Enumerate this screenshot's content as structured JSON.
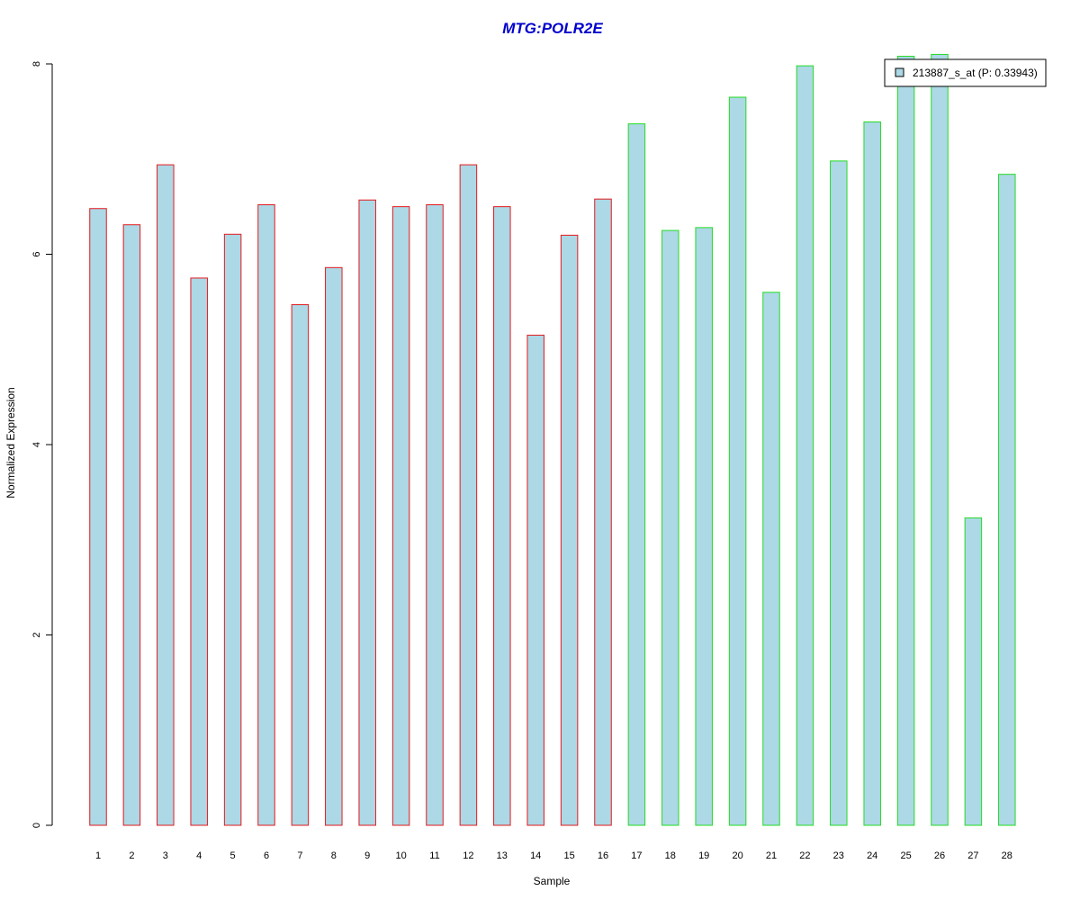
{
  "chart_data": {
    "type": "bar",
    "title": "MTG:POLR2E",
    "xlabel": "Sample",
    "ylabel": "Normalized Expression",
    "ylim": [
      0,
      8
    ],
    "yticks": [
      0,
      2,
      4,
      6,
      8
    ],
    "categories": [
      "1",
      "2",
      "3",
      "4",
      "5",
      "6",
      "7",
      "8",
      "9",
      "10",
      "11",
      "12",
      "13",
      "14",
      "15",
      "16",
      "17",
      "18",
      "19",
      "20",
      "21",
      "22",
      "23",
      "24",
      "25",
      "26",
      "27",
      "28"
    ],
    "series": [
      {
        "name": "213887_s_at (P: 0.33943)",
        "values": [
          6.48,
          6.31,
          6.94,
          5.75,
          6.21,
          6.52,
          5.47,
          5.86,
          6.57,
          6.5,
          6.52,
          6.94,
          6.5,
          5.15,
          6.2,
          6.58,
          7.37,
          6.25,
          6.28,
          7.65,
          5.6,
          7.98,
          6.98,
          7.39,
          8.08,
          8.1,
          3.23,
          6.84
        ]
      }
    ],
    "groups": [
      {
        "from": 1,
        "to": 16,
        "border_color": "#e31a1c"
      },
      {
        "from": 17,
        "to": 28,
        "border_color": "#22dd22"
      }
    ],
    "fill_color": "#add8e6",
    "title_color": "#0000cc",
    "grid": false,
    "legend_position": "top-right"
  }
}
